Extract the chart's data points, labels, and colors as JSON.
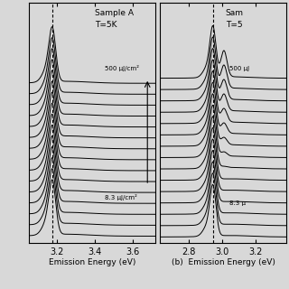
{
  "panel_a": {
    "label": "Sample A",
    "temp": "T=5K",
    "xlabel": "Emission Energy (eV)",
    "xlim": [
      3.05,
      3.72
    ],
    "xticks": [
      3.2,
      3.4,
      3.6
    ],
    "dashed_line_x": 3.175,
    "fluences_label_high": "500 μJ/cm²",
    "fluences_label_low": "8.3 μJ/cm²",
    "n_curves": 15
  },
  "panel_b": {
    "label": "Sam",
    "temp": "T=5",
    "xlabel": "Emission Energy (eV)",
    "xlim": [
      2.63,
      3.38
    ],
    "xticks": [
      2.8,
      3.0,
      3.2
    ],
    "dashed_line_x": 2.945,
    "fluences_label_high": "500 μJ",
    "fluences_label_low": "8.3 μ",
    "n_curves": 15
  },
  "bg_color": "#d8d8d8",
  "linewidth": 0.7
}
